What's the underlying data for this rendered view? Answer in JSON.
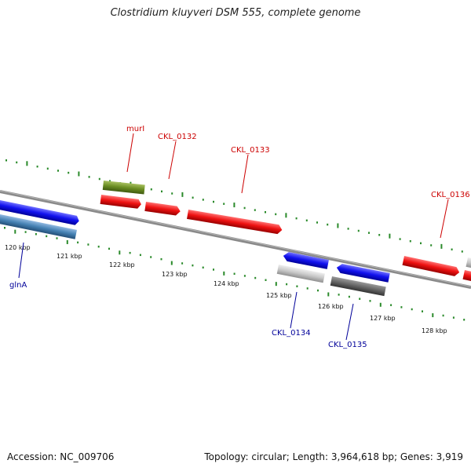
{
  "title": "Clostridium kluyveri DSM 555, complete genome",
  "footer": {
    "accession": "Accession: NC_009706",
    "summary": "Topology: circular; Length: 3,964,618 bp; Genes: 3,919"
  },
  "scale_labels": [
    "120 kbp",
    "121 kbp",
    "122 kbp",
    "123 kbp",
    "124 kbp",
    "125 kbp",
    "126 kbp",
    "127 kbp",
    "128 kbp"
  ],
  "gene_labels": [
    "murI",
    "CKL_0132",
    "CKL_0133",
    "CKL_0136",
    "glnA",
    "CKL_0134",
    "CKL_0135"
  ],
  "colors": {
    "forward_gene": "#ee1111",
    "reverse_gene": "#1111ee",
    "label_red": "#cc0000",
    "label_blue": "#000099",
    "tick": "#2a8a2a",
    "backbone": "#8a8a8a",
    "murI_gene": "#6b8e23",
    "light_gray_gene": "#c8c8c8",
    "dark_gray_gene": "#666666",
    "steel_blue_gene": "#4682b4"
  }
}
